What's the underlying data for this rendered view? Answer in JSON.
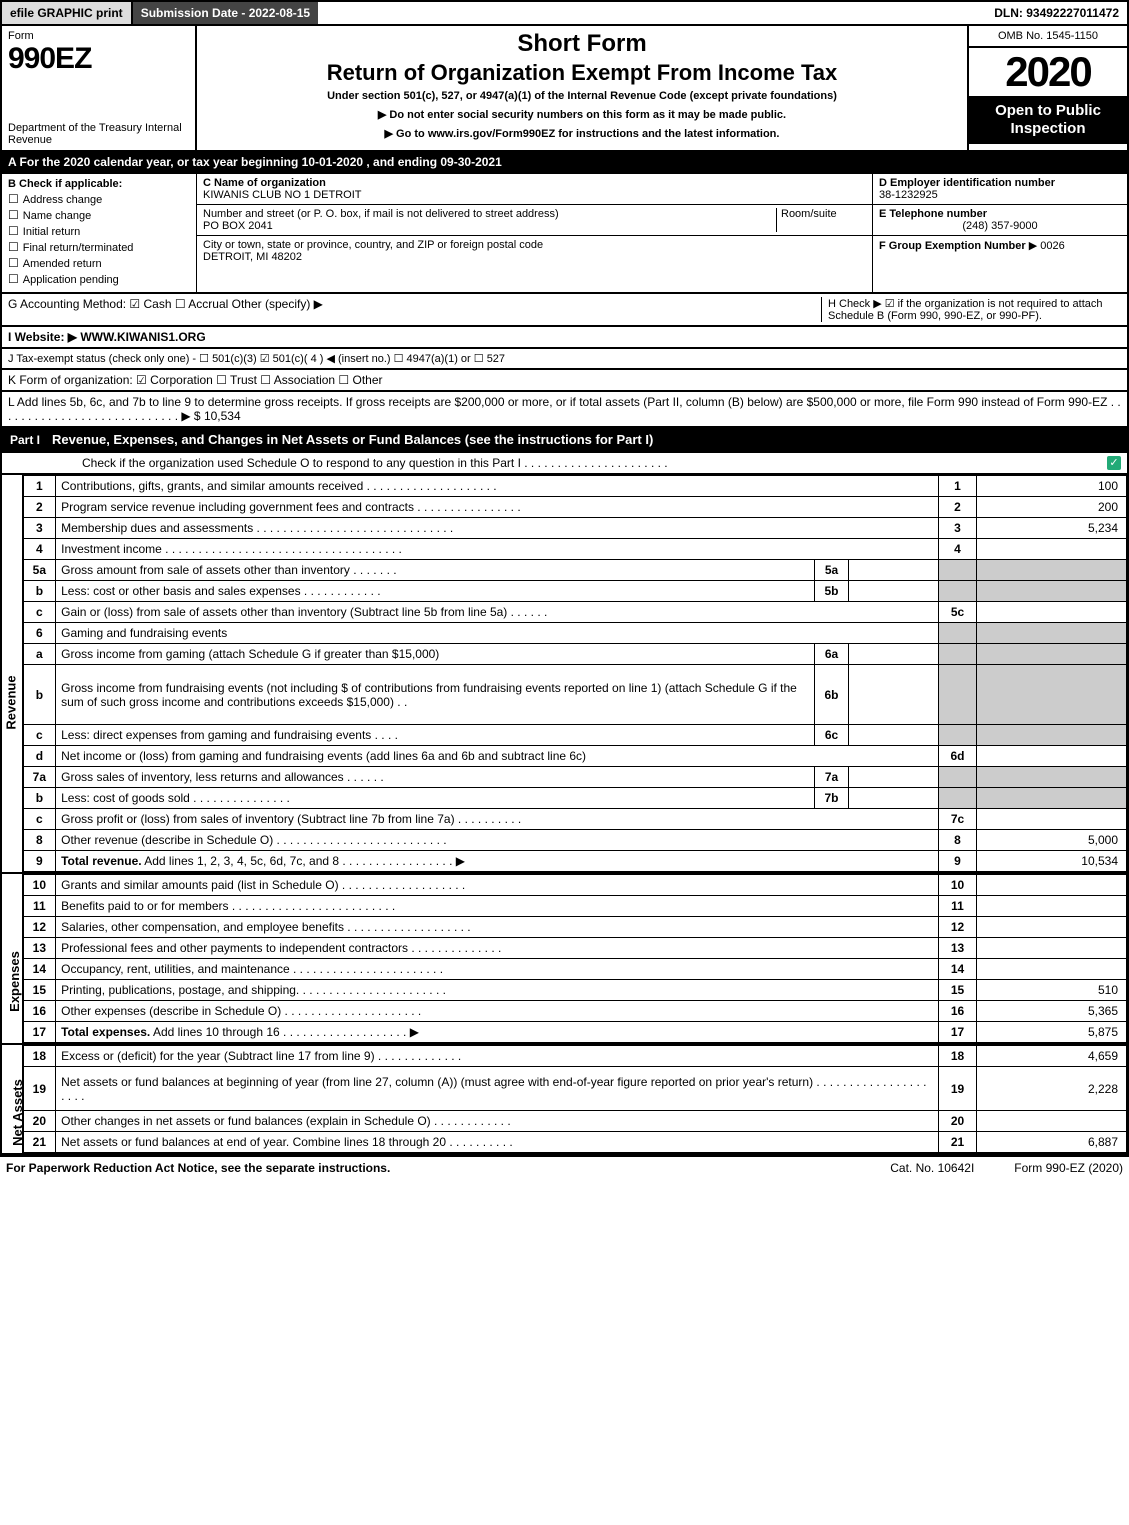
{
  "top_bar": {
    "efile_btn": "efile GRAPHIC print",
    "submission": "Submission Date - 2022-08-15",
    "dln": "DLN: 93492227011472"
  },
  "header": {
    "form_label": "Form",
    "form_number": "990EZ",
    "dept": "Department of the Treasury Internal Revenue",
    "short_form": "Short Form",
    "return_title": "Return of Organization Exempt From Income Tax",
    "subtitle": "Under section 501(c), 527, or 4947(a)(1) of the Internal Revenue Code (except private foundations)",
    "warn": "▶ Do not enter social security numbers on this form as it may be made public.",
    "goto": "▶ Go to www.irs.gov/Form990EZ for instructions and the latest information.",
    "omb": "OMB No. 1545-1150",
    "year": "2020",
    "open": "Open to Public Inspection"
  },
  "period": "A For the 2020 calendar year, or tax year beginning 10-01-2020 , and ending 09-30-2021",
  "box_b": {
    "header": "B Check if applicable:",
    "items": [
      "Address change",
      "Name change",
      "Initial return",
      "Final return/terminated",
      "Amended return",
      "Application pending"
    ]
  },
  "box_c": {
    "name_label": "C Name of organization",
    "name": "KIWANIS CLUB NO 1 DETROIT",
    "addr_label": "Number and street (or P. O. box, if mail is not delivered to street address)",
    "room_label": "Room/suite",
    "addr": "PO BOX 2041",
    "city_label": "City or town, state or province, country, and ZIP or foreign postal code",
    "city": "DETROIT, MI  48202"
  },
  "box_d": {
    "ein_label": "D Employer identification number",
    "ein": "38-1232925",
    "phone_label": "E Telephone number",
    "phone": "(248) 357-9000",
    "group_label": "F Group Exemption Number",
    "group": "▶ 0026"
  },
  "line_g": "G Accounting Method:  ☑ Cash  ☐ Accrual  Other (specify) ▶",
  "line_h": "H  Check ▶ ☑ if the organization is not required to attach Schedule B (Form 990, 990-EZ, or 990-PF).",
  "line_i": "I Website: ▶ WWW.KIWANIS1.ORG",
  "line_j": "J Tax-exempt status (check only one) - ☐ 501(c)(3)  ☑ 501(c)( 4 ) ◀ (insert no.)  ☐ 4947(a)(1) or  ☐ 527",
  "line_k": "K Form of organization:  ☑ Corporation  ☐ Trust  ☐ Association  ☐ Other",
  "line_l": "L Add lines 5b, 6c, and 7b to line 9 to determine gross receipts. If gross receipts are $200,000 or more, or if total assets (Part II, column (B) below) are $500,000 or more, file Form 990 instead of Form 990-EZ  .  .  .  .  .  .  .  .  .  .  .  .  .  .  .  .  .  .  .  .  .  .  .  .  .  .  .  . ▶ $ 10,534",
  "part1": {
    "label": "Part I",
    "title": "Revenue, Expenses, and Changes in Net Assets or Fund Balances (see the instructions for Part I)",
    "check_line": "Check if the organization used Schedule O to respond to any question in this Part I  .  .  .  .  .  .  .  .  .  .  .  .  .  .  .  .  .  .  .  .  .  ."
  },
  "sections": {
    "revenue": "Revenue",
    "expenses": "Expenses",
    "netassets": "Net Assets"
  },
  "revenue_lines": [
    {
      "ln": "1",
      "desc": "Contributions, gifts, grants, and similar amounts received  .  .  .  .  .  .  .  .  .  .  .  .  .  .  .  .  .  .  .  .",
      "num": "1",
      "val": "100"
    },
    {
      "ln": "2",
      "desc": "Program service revenue including government fees and contracts  .  .  .  .  .  .  .  .  .  .  .  .  .  .  .  .",
      "num": "2",
      "val": "200"
    },
    {
      "ln": "3",
      "desc": "Membership dues and assessments  .  .  .  .  .  .  .  .  .  .  .  .  .  .  .  .  .  .  .  .  .  .  .  .  .  .  .  .  .  .",
      "num": "3",
      "val": "5,234"
    },
    {
      "ln": "4",
      "desc": "Investment income  .  .  .  .  .  .  .  .  .  .  .  .  .  .  .  .  .  .  .  .  .  .  .  .  .  .  .  .  .  .  .  .  .  .  .  .",
      "num": "4",
      "val": ""
    },
    {
      "ln": "5a",
      "desc": "Gross amount from sale of assets other than inventory  .  .  .  .  .  .  .",
      "sub": "5a",
      "subval": "",
      "grey": true
    },
    {
      "ln": "b",
      "desc": "Less: cost or other basis and sales expenses  .  .  .  .  .  .  .  .  .  .  .  .",
      "sub": "5b",
      "subval": "",
      "grey": true
    },
    {
      "ln": "c",
      "desc": "Gain or (loss) from sale of assets other than inventory (Subtract line 5b from line 5a)  .  .  .  .  .  .",
      "num": "5c",
      "val": ""
    },
    {
      "ln": "6",
      "desc": "Gaming and fundraising events",
      "grey": true,
      "noborder": true
    },
    {
      "ln": "a",
      "desc": "Gross income from gaming (attach Schedule G if greater than $15,000)",
      "sub": "6a",
      "subval": "",
      "grey": true
    },
    {
      "ln": "b",
      "desc": "Gross income from fundraising events (not including $                       of contributions from fundraising events reported on line 1) (attach Schedule G if the sum of such gross income and contributions exceeds $15,000)      .   .",
      "sub": "6b",
      "subval": "",
      "grey": true,
      "tall": true
    },
    {
      "ln": "c",
      "desc": "Less: direct expenses from gaming and fundraising events      .  .  .  .",
      "sub": "6c",
      "subval": "",
      "grey": true
    },
    {
      "ln": "d",
      "desc": "Net income or (loss) from gaming and fundraising events (add lines 6a and 6b and subtract line 6c)",
      "num": "6d",
      "val": ""
    },
    {
      "ln": "7a",
      "desc": "Gross sales of inventory, less returns and allowances  .  .  .  .  .  .",
      "sub": "7a",
      "subval": "",
      "grey": true
    },
    {
      "ln": "b",
      "desc": "Less: cost of goods sold             .  .  .  .  .  .  .  .  .  .  .  .  .  .  .",
      "sub": "7b",
      "subval": "",
      "grey": true
    },
    {
      "ln": "c",
      "desc": "Gross profit or (loss) from sales of inventory (Subtract line 7b from line 7a)  .  .  .  .  .  .  .  .  .  .",
      "num": "7c",
      "val": ""
    },
    {
      "ln": "8",
      "desc": "Other revenue (describe in Schedule O)  .  .  .  .  .  .  .  .  .  .  .  .  .  .  .  .  .  .  .  .  .  .  .  .  .  .",
      "num": "8",
      "val": "5,000"
    },
    {
      "ln": "9",
      "desc": "Total revenue. Add lines 1, 2, 3, 4, 5c, 6d, 7c, and 8  .  .  .  .  .  .  .  .  .  .  .  .  .  .  .  .  .  ▶",
      "num": "9",
      "val": "10,534",
      "bold": true
    }
  ],
  "expense_lines": [
    {
      "ln": "10",
      "desc": "Grants and similar amounts paid (list in Schedule O)  .  .  .  .  .  .  .  .  .  .  .  .  .  .  .  .  .  .  .",
      "num": "10",
      "val": ""
    },
    {
      "ln": "11",
      "desc": "Benefits paid to or for members        .  .  .  .  .  .  .  .  .  .  .  .  .  .  .  .  .  .  .  .  .  .  .  .  .",
      "num": "11",
      "val": ""
    },
    {
      "ln": "12",
      "desc": "Salaries, other compensation, and employee benefits  .  .  .  .  .  .  .  .  .  .  .  .  .  .  .  .  .  .  .",
      "num": "12",
      "val": ""
    },
    {
      "ln": "13",
      "desc": "Professional fees and other payments to independent contractors  .  .  .  .  .  .  .  .  .  .  .  .  .  .",
      "num": "13",
      "val": ""
    },
    {
      "ln": "14",
      "desc": "Occupancy, rent, utilities, and maintenance .  .  .  .  .  .  .  .  .  .  .  .  .  .  .  .  .  .  .  .  .  .  .",
      "num": "14",
      "val": ""
    },
    {
      "ln": "15",
      "desc": "Printing, publications, postage, and shipping.  .  .  .  .  .  .  .  .  .  .  .  .  .  .  .  .  .  .  .  .  .  .",
      "num": "15",
      "val": "510"
    },
    {
      "ln": "16",
      "desc": "Other expenses (describe in Schedule O)       .  .  .  .  .  .  .  .  .  .  .  .  .  .  .  .  .  .  .  .  .",
      "num": "16",
      "val": "5,365"
    },
    {
      "ln": "17",
      "desc": "Total expenses. Add lines 10 through 16     .  .  .  .  .  .  .  .  .  .  .  .  .  .  .  .  .  .  .  ▶",
      "num": "17",
      "val": "5,875",
      "bold": true
    }
  ],
  "netasset_lines": [
    {
      "ln": "18",
      "desc": "Excess or (deficit) for the year (Subtract line 17 from line 9)       .  .  .  .  .  .  .  .  .  .  .  .  .",
      "num": "18",
      "val": "4,659"
    },
    {
      "ln": "19",
      "desc": "Net assets or fund balances at beginning of year (from line 27, column (A)) (must agree with end-of-year figure reported on prior year's return) .  .  .  .  .  .  .  .  .  .  .  .  .  .  .  .  .  .  .  .  .",
      "num": "19",
      "val": "2,228",
      "tall": true
    },
    {
      "ln": "20",
      "desc": "Other changes in net assets or fund balances (explain in Schedule O)  .  .  .  .  .  .  .  .  .  .  .  .",
      "num": "20",
      "val": ""
    },
    {
      "ln": "21",
      "desc": "Net assets or fund balances at end of year. Combine lines 18 through 20  .  .  .  .  .  .  .  .  .  .",
      "num": "21",
      "val": "6,887"
    }
  ],
  "footer": {
    "left": "For Paperwork Reduction Act Notice, see the separate instructions.",
    "mid": "Cat. No. 10642I",
    "right": "Form 990-EZ (2020)"
  }
}
